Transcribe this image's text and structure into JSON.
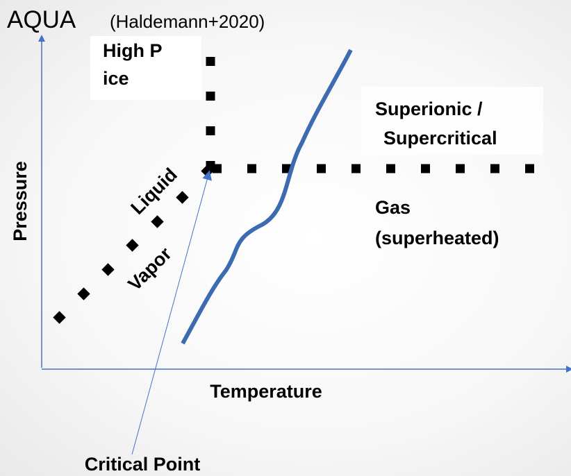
{
  "title": {
    "main": "AQUA",
    "citation": "(Haldemann+2020)"
  },
  "axes": {
    "y_label": "Pressure",
    "x_label": "Temperature"
  },
  "regions": {
    "high_p_ice": [
      "High P",
      "ice"
    ],
    "superionic": [
      "Superionic /",
      "Supercritical"
    ],
    "liquid": "Liquid",
    "vapor": "Vapor",
    "gas": [
      "Gas",
      "(superheated)"
    ]
  },
  "annotation": "Critical Point"
}
